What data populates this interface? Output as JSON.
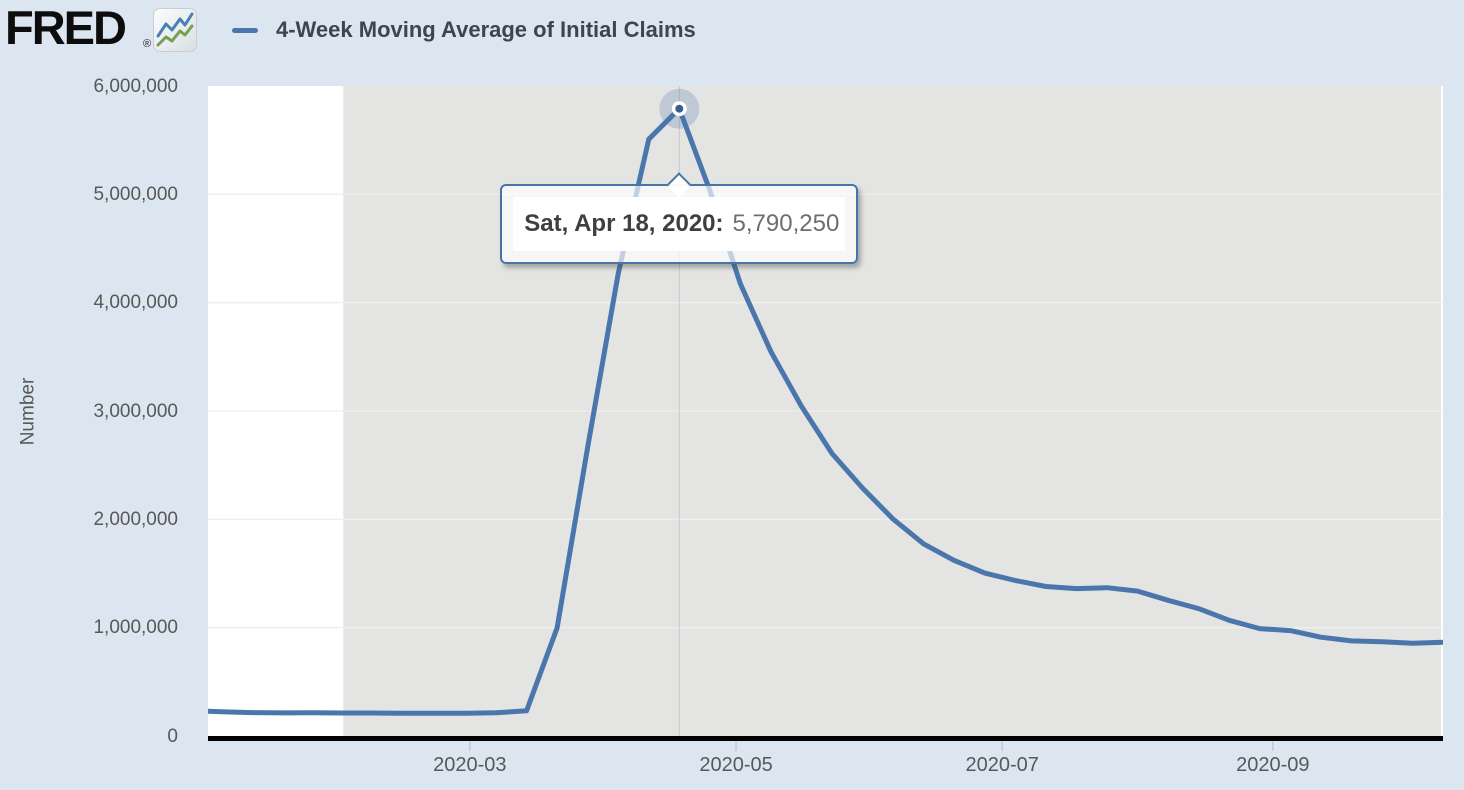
{
  "page": {
    "background": "#dce6f1"
  },
  "header": {
    "logo_text": "FRED",
    "registered_mark": "®",
    "logo_icon": "fred-sparkline-icon",
    "legend": {
      "label": "4-Week Moving Average of Initial Claims",
      "color": "#4a76ab"
    }
  },
  "tooltip": {
    "date_label": "Sat, Apr 18, 2020:",
    "value": "5,790,250",
    "point_date": "2020-04-18"
  },
  "chart_data": {
    "type": "line",
    "title": "4-Week Moving Average of Initial Claims",
    "xlabel": "",
    "ylabel": "Number",
    "x_domain": [
      "2020-01-01",
      "2020-10-10"
    ],
    "ylim": [
      0,
      6000000
    ],
    "grid": true,
    "legend_position": "top-left",
    "plot_background": "#ffffff",
    "gridline_color": "#efefef",
    "axis_line_color": "#000000",
    "crosshair_color": "#c8c8c8",
    "y_ticks": [
      {
        "value": 0,
        "label": "0"
      },
      {
        "value": 1000000,
        "label": "1,000,000"
      },
      {
        "value": 2000000,
        "label": "2,000,000"
      },
      {
        "value": 3000000,
        "label": "3,000,000"
      },
      {
        "value": 4000000,
        "label": "4,000,000"
      },
      {
        "value": 5000000,
        "label": "5,000,000"
      },
      {
        "value": 6000000,
        "label": "6,000,000"
      }
    ],
    "x_ticks": [
      {
        "date": "2020-03-01",
        "label": "2020-03"
      },
      {
        "date": "2020-05-01",
        "label": "2020-05"
      },
      {
        "date": "2020-07-01",
        "label": "2020-07"
      },
      {
        "date": "2020-09-01",
        "label": "2020-09"
      }
    ],
    "recession_band": {
      "start": "2020-02-01",
      "end": "2020-10-10",
      "color": "#e4e4e3"
    },
    "highlight_point": {
      "date": "2020-04-18",
      "value": 5790250
    },
    "series": [
      {
        "name": "4-Week Moving Average of Initial Claims",
        "color": "#4a76ab",
        "points": [
          {
            "date": "2019-12-28",
            "value": 233500
          },
          {
            "date": "2020-01-04",
            "value": 224500
          },
          {
            "date": "2020-01-11",
            "value": 216250
          },
          {
            "date": "2020-01-18",
            "value": 213250
          },
          {
            "date": "2020-01-25",
            "value": 214500
          },
          {
            "date": "2020-02-01",
            "value": 212250
          },
          {
            "date": "2020-02-08",
            "value": 212250
          },
          {
            "date": "2020-02-15",
            "value": 209750
          },
          {
            "date": "2020-02-22",
            "value": 210250
          },
          {
            "date": "2020-02-29",
            "value": 209750
          },
          {
            "date": "2020-03-07",
            "value": 214000
          },
          {
            "date": "2020-03-14",
            "value": 232250
          },
          {
            "date": "2020-03-21",
            "value": 998250
          },
          {
            "date": "2020-03-28",
            "value": 2666750
          },
          {
            "date": "2020-04-04",
            "value": 4267750
          },
          {
            "date": "2020-04-11",
            "value": 5508500
          },
          {
            "date": "2020-04-18",
            "value": 5790250
          },
          {
            "date": "2020-04-25",
            "value": 5035250
          },
          {
            "date": "2020-05-02",
            "value": 4173500
          },
          {
            "date": "2020-05-09",
            "value": 3546500
          },
          {
            "date": "2020-05-16",
            "value": 3042000
          },
          {
            "date": "2020-05-23",
            "value": 2608000
          },
          {
            "date": "2020-05-30",
            "value": 2288250
          },
          {
            "date": "2020-06-06",
            "value": 2002000
          },
          {
            "date": "2020-06-13",
            "value": 1773500
          },
          {
            "date": "2020-06-20",
            "value": 1620750
          },
          {
            "date": "2020-06-27",
            "value": 1503750
          },
          {
            "date": "2020-07-04",
            "value": 1435250
          },
          {
            "date": "2020-07-11",
            "value": 1380000
          },
          {
            "date": "2020-07-18",
            "value": 1360250
          },
          {
            "date": "2020-07-25",
            "value": 1368500
          },
          {
            "date": "2020-08-01",
            "value": 1337750
          },
          {
            "date": "2020-08-08",
            "value": 1252750
          },
          {
            "date": "2020-08-15",
            "value": 1175750
          },
          {
            "date": "2020-08-22",
            "value": 1068000
          },
          {
            "date": "2020-08-29",
            "value": 991750
          },
          {
            "date": "2020-09-05",
            "value": 973250
          },
          {
            "date": "2020-09-12",
            "value": 912000
          },
          {
            "date": "2020-09-19",
            "value": 878250
          },
          {
            "date": "2020-09-26",
            "value": 870000
          },
          {
            "date": "2020-10-03",
            "value": 857000
          },
          {
            "date": "2020-10-10",
            "value": 866250
          }
        ]
      }
    ]
  }
}
